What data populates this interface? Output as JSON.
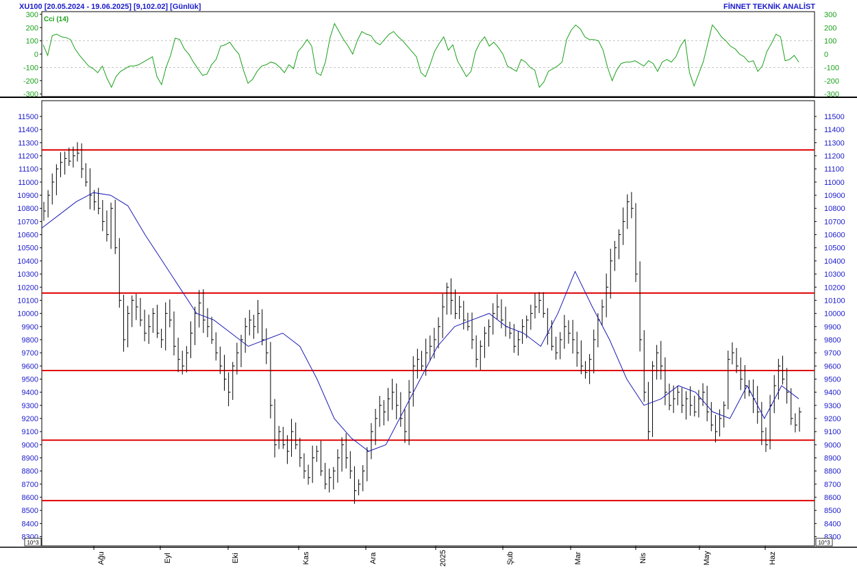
{
  "header": {
    "title": "XU100  [20.05.2024 - 19.06.2025]  [9,102.02]  [Günlük]",
    "brand": "FİNNET TEKNİK ANALİST"
  },
  "colors": {
    "axis_text": "#1a1acc",
    "cci_line": "#18a018",
    "ma_line": "#1a1ab4",
    "bars": "#000000",
    "support_resistance": "#e00000",
    "grid": "#b4b4b4"
  },
  "chart_data": [
    {
      "type": "line",
      "name": "cci-panel",
      "series": [
        {
          "name": "Cci (14)",
          "values": [
            70,
            -10,
            140,
            150,
            130,
            125,
            110,
            40,
            -10,
            -50,
            -90,
            -110,
            -140,
            -90,
            -180,
            -250,
            -170,
            -130,
            -110,
            -90,
            -90,
            -80,
            -60,
            -40,
            -20,
            -170,
            -230,
            -100,
            -10,
            120,
            110,
            40,
            0,
            -60,
            -110,
            -160,
            -150,
            -80,
            -40,
            60,
            70,
            90,
            40,
            0,
            -120,
            -220,
            -190,
            -130,
            -90,
            -80,
            -60,
            -70,
            -100,
            -140,
            -80,
            -110,
            20,
            60,
            110,
            60,
            -140,
            -160,
            -60,
            120,
            230,
            170,
            110,
            60,
            0,
            100,
            170,
            150,
            140,
            90,
            70,
            110,
            150,
            170,
            130,
            100,
            60,
            20,
            -20,
            -140,
            -170,
            -80,
            20,
            80,
            130,
            30,
            70,
            -50,
            -110,
            -170,
            -130,
            20,
            90,
            130,
            60,
            90,
            50,
            0,
            -90,
            -110,
            -130,
            -40,
            -60,
            -100,
            -120,
            -250,
            -210,
            -130,
            -110,
            -90,
            -60,
            110,
            180,
            220,
            190,
            130,
            110,
            110,
            100,
            30,
            -100,
            -200,
            -120,
            -70,
            -60,
            -60,
            -50,
            -70,
            -90,
            -50,
            -70,
            -130,
            -60,
            -40,
            -60,
            -20,
            60,
            110,
            -140,
            -240,
            -150,
            -60,
            80,
            220,
            180,
            130,
            100,
            60,
            40,
            0,
            -20,
            -60,
            -50,
            -130,
            -90,
            20,
            80,
            150,
            130,
            -50,
            -40,
            -10,
            -60
          ],
          "x_range": [
            "2024-05-20",
            "2025-06-19"
          ]
        }
      ],
      "ylim": [
        -320,
        320
      ],
      "yticks": [
        300,
        200,
        100,
        0,
        -100,
        -200,
        -300
      ],
      "ytick_labels": [
        "300",
        "200",
        "100",
        "0",
        "-100",
        "-200",
        "-300"
      ],
      "hlines": [
        100,
        -100
      ],
      "legend": "top-left"
    },
    {
      "type": "bar",
      "name": "price-panel",
      "ohlc_closes": [
        10780,
        10900,
        11000,
        11100,
        11150,
        11180,
        11160,
        11200,
        11220,
        11100,
        11000,
        10900,
        10850,
        10800,
        10700,
        10600,
        10800,
        10500,
        10100,
        9800,
        10000,
        10100,
        10050,
        9950,
        9850,
        9900,
        10000,
        9850,
        9800,
        10000,
        9950,
        9750,
        9650,
        9600,
        9700,
        9850,
        10000,
        10080,
        9950,
        9900,
        9800,
        9700,
        9600,
        9500,
        9400,
        9600,
        9700,
        9800,
        9900,
        9950,
        9900,
        10000,
        9800,
        9700,
        9300,
        9000,
        9100,
        9000,
        8950,
        9100,
        9000,
        8900,
        8800,
        8750,
        8900,
        8950,
        8800,
        8700,
        8750,
        8800,
        8900,
        9000,
        8900,
        8800,
        8650,
        8700,
        8800,
        8950,
        9100,
        9200,
        9300,
        9250,
        9350,
        9400,
        9300,
        9200,
        9100,
        9400,
        9600,
        9650,
        9600,
        9700,
        9750,
        9800,
        9900,
        10050,
        10200,
        10100,
        10000,
        10050,
        9950,
        9900,
        9800,
        9650,
        9750,
        9850,
        9900,
        10000,
        10050,
        9950,
        9900,
        9850,
        9750,
        9800,
        9900,
        9950,
        10000,
        10050,
        10100,
        10000,
        9850,
        9750,
        9700,
        9800,
        9900,
        9850,
        9800,
        9700,
        9600,
        9550,
        9650,
        9800,
        9950,
        10050,
        10200,
        10400,
        10500,
        10600,
        10700,
        10850,
        10800,
        10300,
        9800,
        9400,
        9100,
        9600,
        9700,
        9600,
        9400,
        9300,
        9350,
        9400,
        9300,
        9350,
        9300,
        9250,
        9350,
        9400,
        9250,
        9150,
        9100,
        9200,
        9300,
        9650,
        9700,
        9600,
        9500,
        9450,
        9400,
        9350,
        9250,
        9100,
        9000,
        9300,
        9450,
        9600,
        9500,
        9400,
        9200,
        9150,
        9250
      ],
      "series": [
        {
          "name": "Moving Average",
          "values": [
            10650,
            10750,
            10850,
            10920,
            10900,
            10820,
            10600,
            10400,
            10200,
            10000,
            9950,
            9850,
            9750,
            9800,
            9850,
            9750,
            9500,
            9200,
            9050,
            8950,
            9000,
            9250,
            9500,
            9750,
            9900,
            9950,
            10000,
            9900,
            9850,
            9750,
            10000,
            10320,
            10050,
            9800,
            9500,
            9300,
            9350,
            9450,
            9400,
            9250,
            9200,
            9450,
            9200,
            9450,
            9350
          ]
        }
      ],
      "x_range": [
        "2024-05-20",
        "2025-06-19"
      ],
      "xticks": [
        "Ağu",
        "Eyl",
        "Eki",
        "Kas",
        "Ara",
        "2025",
        "Şub",
        "Mar",
        "Nis",
        "May",
        "Haz"
      ],
      "ylim": [
        8230,
        11620
      ],
      "yticks": [
        11500,
        11400,
        11300,
        11200,
        11100,
        11000,
        10900,
        10800,
        10700,
        10600,
        10500,
        10400,
        10300,
        10200,
        10100,
        10000,
        9900,
        9800,
        9700,
        9600,
        9500,
        9400,
        9300,
        9200,
        9100,
        9000,
        8900,
        8800,
        8700,
        8600,
        8500,
        8400,
        8300
      ],
      "ytick_labels": [
        "11500",
        "11400",
        "11300",
        "11200",
        "11100",
        "11000",
        "10900",
        "10800",
        "10700",
        "10600",
        "10500",
        "10400",
        "10300",
        "10200",
        "10100",
        "10000",
        "9900",
        "9800",
        "9700",
        "9600",
        "9500",
        "9400",
        "9300",
        "9200",
        "9100",
        "9000",
        "8900",
        "8800",
        "8700",
        "8600",
        "8500",
        "8400",
        "8300"
      ],
      "hlines": [
        11245,
        10155,
        9565,
        9035,
        8575
      ],
      "scale_label": "10^3"
    }
  ]
}
